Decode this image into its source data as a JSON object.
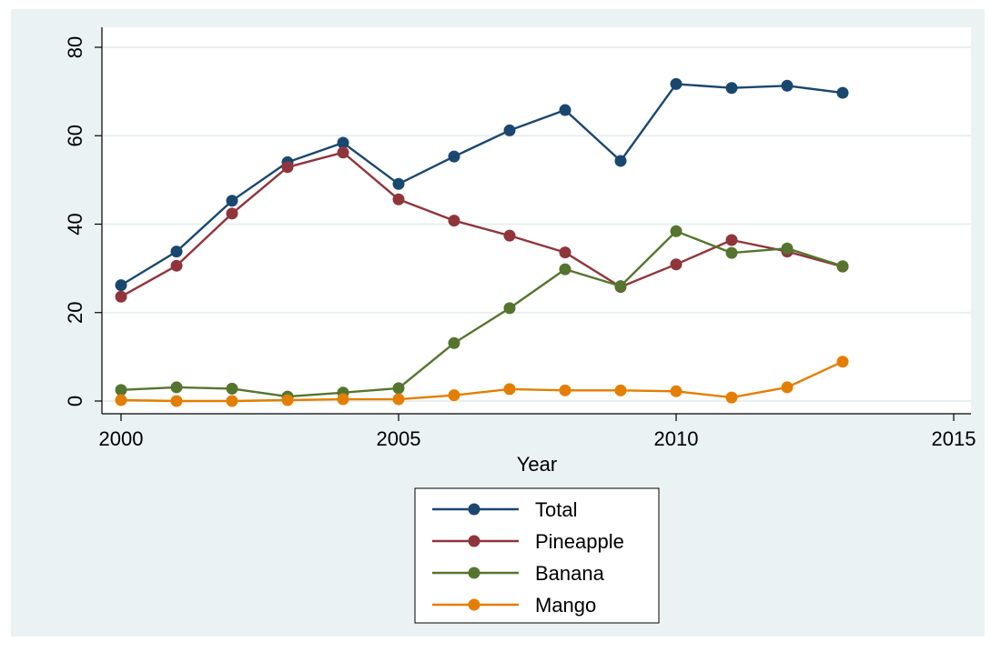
{
  "chart_data": {
    "type": "line",
    "title": "",
    "xlabel": "Year",
    "ylabel": "",
    "xlim": [
      2000,
      2015
    ],
    "ylim": [
      0,
      80
    ],
    "x_ticks": [
      "2000",
      "2005",
      "2010",
      "2015"
    ],
    "y_ticks": [
      "0",
      "20",
      "40",
      "60",
      "80"
    ],
    "grid": true,
    "legend_position": "bottom",
    "x": [
      2000,
      2001,
      2002,
      2003,
      2004,
      2005,
      2006,
      2007,
      2008,
      2009,
      2010,
      2011,
      2012,
      2013
    ],
    "series": [
      {
        "name": "Total",
        "color": "#1a476f",
        "values": [
          26.2,
          33.8,
          45.3,
          54.0,
          58.4,
          49.1,
          55.3,
          61.2,
          65.8,
          54.3,
          71.7,
          70.8,
          71.3,
          69.7
        ]
      },
      {
        "name": "Pineapple",
        "color": "#90353b",
        "values": [
          23.6,
          30.6,
          42.4,
          52.9,
          56.2,
          45.6,
          40.8,
          37.4,
          33.6,
          25.8,
          30.9,
          36.4,
          33.8,
          30.4
        ]
      },
      {
        "name": "Banana",
        "color": "#55752f",
        "values": [
          2.5,
          3.1,
          2.8,
          1.0,
          1.9,
          2.9,
          13.1,
          21.0,
          29.8,
          26.0,
          38.4,
          33.5,
          34.5,
          30.5
        ]
      },
      {
        "name": "Mango",
        "color": "#e37e00",
        "values": [
          0.2,
          0.0,
          0.0,
          0.2,
          0.4,
          0.4,
          1.3,
          2.7,
          2.4,
          2.4,
          2.2,
          0.8,
          3.1,
          8.9
        ]
      }
    ]
  }
}
